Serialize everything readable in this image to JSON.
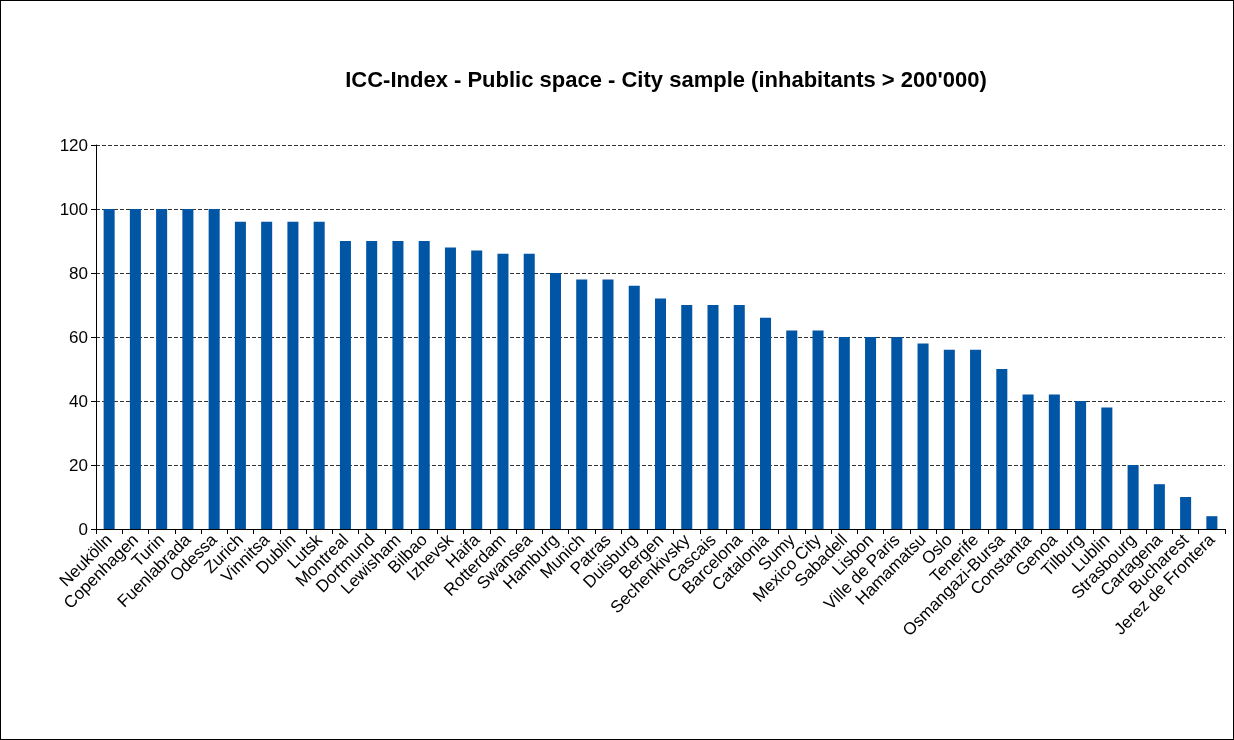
{
  "chart_data": {
    "type": "bar",
    "title": "ICC-Index - Public space - City sample (inhabitants > 200'000)",
    "categories": [
      "Neukölln",
      "Copenhagen",
      "Turin",
      "Fuenlabrada",
      "Odessa",
      "Zurich",
      "Vinnitsa",
      "Dublin",
      "Lutsk",
      "Montreal",
      "Dortmund",
      "Lewisham",
      "Bilbao",
      "Izhevsk",
      "Haifa",
      "Rotterdam",
      "Swansea",
      "Hamburg",
      "Munich",
      "Patras",
      "Duisburg",
      "Bergen",
      "Sechenkivsky",
      "Cascais",
      "Barcelona",
      "Catalonia",
      "Sumy",
      "Mexico City",
      "Sabadell",
      "Lisbon",
      "Ville de Paris",
      "Hamamatsu",
      "Oslo",
      "Tenerife",
      "Osmangazi-Bursa",
      "Constanta",
      "Genoa",
      "Tilburg",
      "Lublin",
      "Strasbourg",
      "Cartagena",
      "Bucharest",
      "Jerez de Frontera"
    ],
    "values": [
      100,
      100,
      100,
      100,
      100,
      96,
      96,
      96,
      96,
      90,
      90,
      90,
      90,
      88,
      87,
      86,
      86,
      80,
      78,
      78,
      76,
      72,
      70,
      70,
      70,
      66,
      62,
      62,
      60,
      60,
      60,
      58,
      56,
      56,
      50,
      42,
      42,
      40,
      38,
      20,
      14,
      10,
      4
    ],
    "color": "#0055a5",
    "ylim": [
      0,
      120
    ],
    "yticks": [
      0,
      20,
      40,
      60,
      80,
      100,
      120
    ],
    "grid": "y"
  }
}
